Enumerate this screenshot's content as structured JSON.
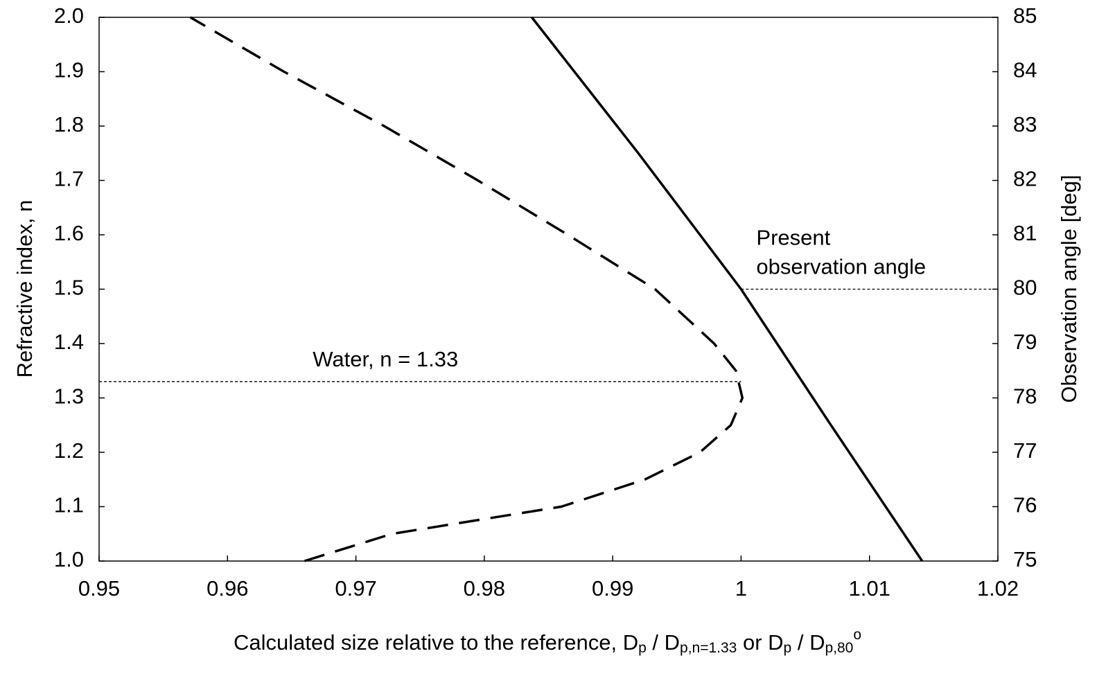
{
  "chart_data": {
    "type": "line",
    "xlabel_parts": [
      {
        "text": "Calculated size relative to the reference, D"
      },
      {
        "text": "p",
        "script": "sub"
      },
      {
        "text": " / D"
      },
      {
        "text": "p,n=1.33",
        "script": "sub"
      },
      {
        "text": " or D"
      },
      {
        "text": "p",
        "script": "sub"
      },
      {
        "text": " / D"
      },
      {
        "text": "p,80",
        "script": "sub"
      },
      {
        "text": "o",
        "script": "super"
      }
    ],
    "ylabel": "Refractive index, n",
    "y2label": "Observation angle [deg]",
    "xlim": [
      0.95,
      1.02
    ],
    "xticks": [
      0.95,
      0.96,
      0.97,
      0.98,
      0.99,
      1,
      1.01,
      1.02
    ],
    "ylim": [
      1,
      2
    ],
    "yticks": [
      {
        "value": 1,
        "label": "1.0"
      },
      1.1,
      1.2,
      1.3,
      1.4,
      1.5,
      1.6,
      1.7,
      1.8,
      1.9,
      {
        "value": 2,
        "label": "2.0"
      }
    ],
    "y2lim": [
      75,
      85
    ],
    "y2ticks": [
      75,
      76,
      77,
      78,
      79,
      80,
      81,
      82,
      83,
      84,
      85
    ],
    "series": [
      {
        "color": "#000000",
        "dash": true,
        "x": [
          0.966,
          0.9728,
          0.986,
          0.9925,
          0.9968,
          0.9992,
          1.0001,
          0.9996,
          0.9979,
          0.9933,
          0.9865,
          0.9795,
          0.9722,
          0.9644,
          0.9571
        ],
        "values": [
          1.0,
          1.05,
          1.1,
          1.15,
          1.2,
          1.25,
          1.3,
          1.35,
          1.4,
          1.5,
          1.6,
          1.7,
          1.8,
          1.9,
          2.0
        ]
      },
      {
        "color": "#000000",
        "dash": false,
        "axis": "y2",
        "x": [
          0.9837,
          0.992,
          1.0,
          1.007,
          1.0141
        ],
        "values": [
          85,
          82.5,
          80,
          77.5,
          75
        ]
      }
    ],
    "reference_lines": [
      {
        "y": 1.33,
        "x_from": 0.95,
        "x_to": 1.0,
        "label_lines": [
          "Water, n = 1.33"
        ]
      },
      {
        "y": 80,
        "axis": "y2",
        "x_from": 1.0,
        "x_to": 1.02,
        "label_lines": [
          "Present",
          "observation angle"
        ]
      }
    ]
  }
}
